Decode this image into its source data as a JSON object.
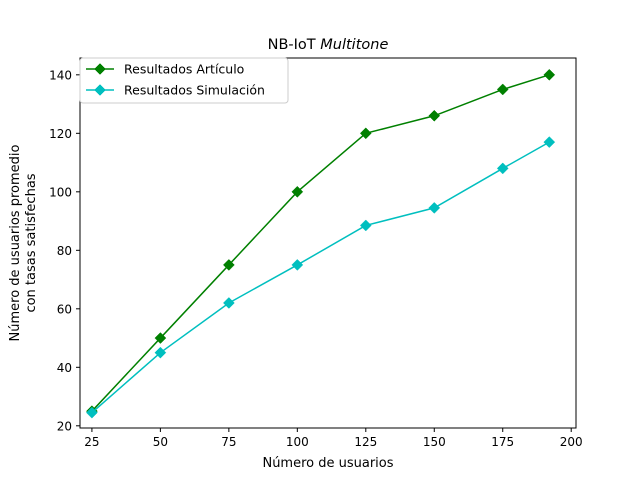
{
  "chart_data": {
    "type": "line",
    "title_prefix": "NB-IoT ",
    "title_italic": "Multitone",
    "xlabel": "Número de usuarios",
    "ylabel_lines": [
      "Número de usuarios promedio",
      "con tasas satisfechas"
    ],
    "xlim": [
      20.65,
      201.75
    ],
    "ylim": [
      19.25,
      145.75
    ],
    "xticks": [
      25,
      50,
      75,
      100,
      125,
      150,
      175,
      200
    ],
    "yticks": [
      20,
      40,
      60,
      80,
      100,
      120,
      140
    ],
    "x": [
      25,
      50,
      75,
      100,
      125,
      150,
      175,
      192
    ],
    "series": [
      {
        "name": "Resultados Artículo",
        "color": "#008000",
        "marker": "diamond",
        "values": [
          25,
          50,
          75,
          100,
          120,
          126,
          135,
          140
        ]
      },
      {
        "name": "Resultados Simulación",
        "color": "#00bfbf",
        "marker": "diamond",
        "values": [
          24.5,
          45,
          62,
          75,
          88.5,
          94.5,
          108,
          117
        ]
      }
    ],
    "legend_position": "top-left",
    "grid": false
  }
}
